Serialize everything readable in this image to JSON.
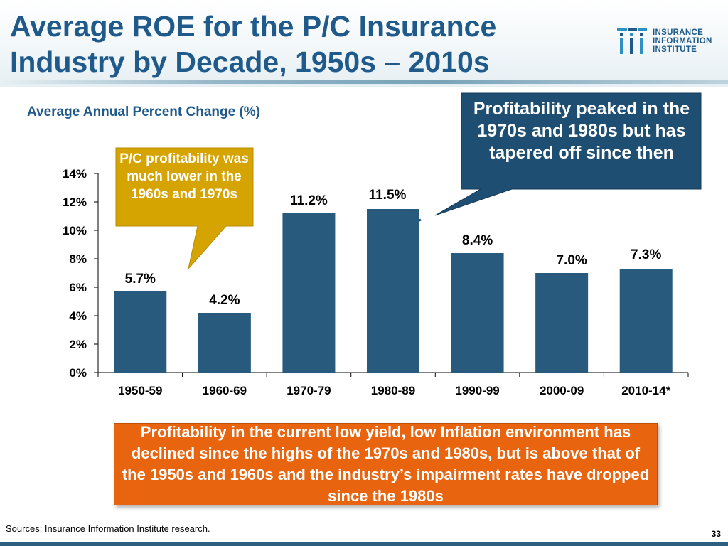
{
  "slide": {
    "title": "Average ROE for the P/C Insurance Industry by Decade, 1950s – 2010s",
    "subtitle": "Average Annual Percent Change (%)",
    "logo_lines": [
      "INSURANCE",
      "INFORMATION",
      "INSTITUTE"
    ],
    "callout_left": "P/C profitability was much lower in the 1960s and 1970s",
    "callout_right": "Profitability peaked in the 1970s and 1980s but has tapered off since then",
    "bottom_box": "Profitability in the current low yield, low Inflation environment has declined since the highs of the 1970s and 1980s, but is above that of the 1950s and 1960s and the industry’s impairment rates have dropped since the 1980s",
    "sources": "Sources:  Insurance Information Institute research.",
    "page_number": "33"
  },
  "colors": {
    "bar": "#285A7D",
    "title": "#1F5A8A",
    "callout_left": "#D6A400",
    "callout_right": "#1E4E72",
    "bottom_box": "#E8640F"
  },
  "chart_data": {
    "type": "bar",
    "categories": [
      "1950-59",
      "1960-69",
      "1970-79",
      "1980-89",
      "1990-99",
      "2000-09",
      "2010-14*"
    ],
    "values": [
      5.7,
      4.2,
      11.2,
      11.5,
      8.4,
      7.0,
      7.3
    ],
    "data_labels": [
      "5.7%",
      "4.2%",
      "11.2%",
      "11.5%",
      "8.4%",
      "7.0%",
      "7.3%"
    ],
    "yticks": [
      "0%",
      "2%",
      "4%",
      "6%",
      "8%",
      "10%",
      "12%",
      "14%"
    ],
    "ylim": [
      0,
      14
    ],
    "title": "Average Annual Percent Change (%)",
    "xlabel": "",
    "ylabel": ""
  }
}
